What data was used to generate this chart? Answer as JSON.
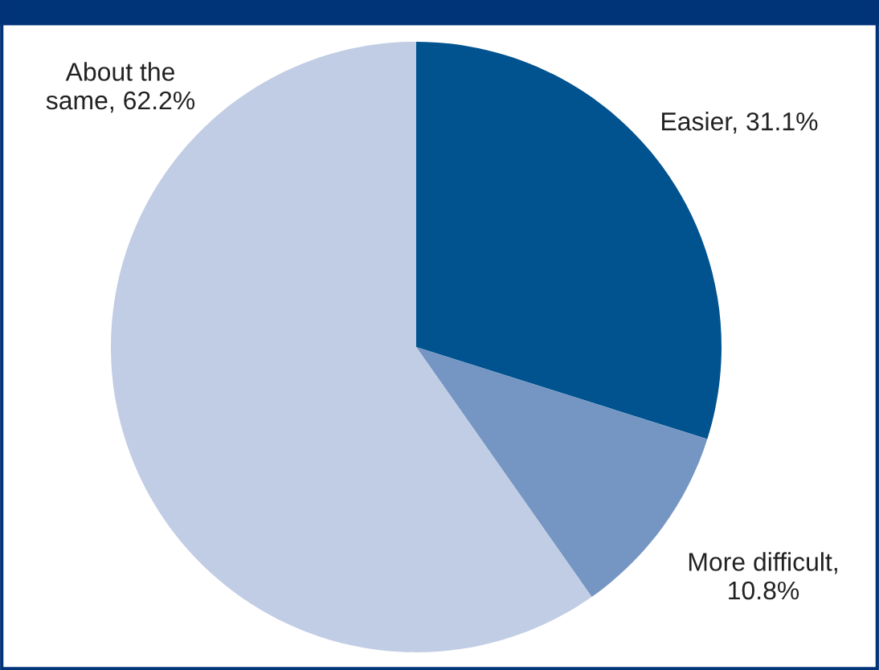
{
  "chart_data": {
    "type": "pie",
    "categories": [
      "Easier",
      "More difficult",
      "About the same"
    ],
    "values": [
      31.1,
      10.8,
      62.2
    ],
    "colors": [
      "#00538f",
      "#7596c3",
      "#c1cde4"
    ],
    "value_labels": [
      ", 31.1%",
      ", 10.8%",
      ", 62.2%"
    ]
  }
}
